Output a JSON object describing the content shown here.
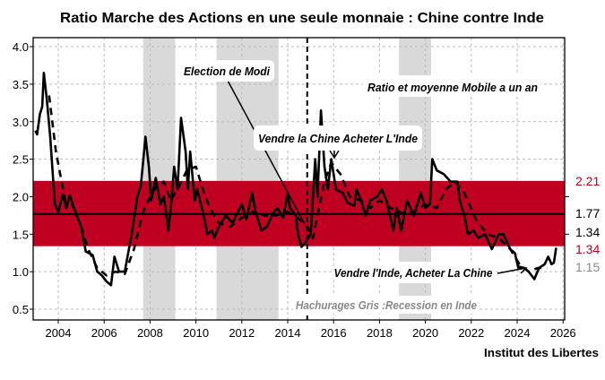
{
  "chart_data": {
    "type": "line",
    "title": "Ratio Marche des Actions en une seule monnaie : Chine contre Inde",
    "xlim": [
      2003,
      2026
    ],
    "ylim": [
      0.4,
      4.1
    ],
    "x_ticks": [
      "2004",
      "2006",
      "2008",
      "2010",
      "2012",
      "2014",
      "2016",
      "2018",
      "2020",
      "2022",
      "2024",
      "2026"
    ],
    "y_ticks": [
      "0.5",
      "1.0",
      "1.5",
      "2.0",
      "2.5",
      "3.0",
      "3.5",
      "4.0"
    ],
    "grid": true,
    "band": {
      "low": 1.34,
      "high": 2.21,
      "mean": 1.77,
      "color": "#c00020"
    },
    "recessions": [
      [
        2007.7,
        2009.1
      ],
      [
        2010.9,
        2013.6
      ],
      [
        2018.85,
        2020.25
      ]
    ],
    "event_line_x": 2014.85,
    "series": [
      {
        "style": "solid",
        "points": [
          [
            2003.0,
            2.88
          ],
          [
            2003.08,
            2.83
          ],
          [
            2003.2,
            3.1
          ],
          [
            2003.3,
            3.2
          ],
          [
            2003.37,
            3.65
          ],
          [
            2003.5,
            3.3
          ],
          [
            2003.65,
            2.8
          ],
          [
            2003.85,
            1.9
          ],
          [
            2004.0,
            1.8
          ],
          [
            2004.2,
            2.03
          ],
          [
            2004.35,
            1.85
          ],
          [
            2004.5,
            2.02
          ],
          [
            2004.8,
            1.75
          ],
          [
            2005.0,
            1.6
          ],
          [
            2005.2,
            1.27
          ],
          [
            2005.5,
            1.22
          ],
          [
            2005.7,
            1.0
          ],
          [
            2005.9,
            0.95
          ],
          [
            2006.1,
            0.87
          ],
          [
            2006.3,
            0.82
          ],
          [
            2006.45,
            1.2
          ],
          [
            2006.65,
            1.0
          ],
          [
            2006.9,
            1.0
          ],
          [
            2007.2,
            1.5
          ],
          [
            2007.45,
            2.0
          ],
          [
            2007.6,
            2.15
          ],
          [
            2007.8,
            2.8
          ],
          [
            2007.95,
            2.4
          ],
          [
            2008.05,
            1.95
          ],
          [
            2008.25,
            2.25
          ],
          [
            2008.45,
            1.9
          ],
          [
            2008.6,
            2.0
          ],
          [
            2008.8,
            1.55
          ],
          [
            2008.95,
            2.0
          ],
          [
            2009.05,
            2.4
          ],
          [
            2009.2,
            2.1
          ],
          [
            2009.35,
            3.05
          ],
          [
            2009.55,
            2.6
          ],
          [
            2009.65,
            2.1
          ],
          [
            2009.75,
            2.6
          ],
          [
            2009.95,
            1.95
          ],
          [
            2010.05,
            2.1
          ],
          [
            2010.3,
            1.8
          ],
          [
            2010.5,
            1.5
          ],
          [
            2010.7,
            1.55
          ],
          [
            2010.8,
            1.45
          ],
          [
            2011.0,
            1.6
          ],
          [
            2011.3,
            1.75
          ],
          [
            2011.6,
            1.65
          ],
          [
            2011.8,
            1.78
          ],
          [
            2012.0,
            1.9
          ],
          [
            2012.2,
            1.7
          ],
          [
            2012.45,
            2.05
          ],
          [
            2012.6,
            1.8
          ],
          [
            2012.85,
            1.55
          ],
          [
            2013.1,
            1.6
          ],
          [
            2013.35,
            1.78
          ],
          [
            2013.55,
            1.85
          ],
          [
            2013.8,
            1.72
          ],
          [
            2014.0,
            2.05
          ],
          [
            2014.1,
            1.85
          ],
          [
            2014.35,
            1.75
          ],
          [
            2014.45,
            1.5
          ],
          [
            2014.6,
            1.33
          ],
          [
            2014.8,
            1.4
          ],
          [
            2015.0,
            1.5
          ],
          [
            2015.2,
            2.5
          ],
          [
            2015.3,
            2.0
          ],
          [
            2015.45,
            3.15
          ],
          [
            2015.6,
            2.4
          ],
          [
            2015.75,
            2.1
          ],
          [
            2015.9,
            2.5
          ],
          [
            2016.1,
            2.1
          ],
          [
            2016.4,
            2.05
          ],
          [
            2016.6,
            1.92
          ],
          [
            2016.9,
            1.88
          ],
          [
            2017.0,
            2.1
          ],
          [
            2017.2,
            1.95
          ],
          [
            2017.4,
            1.75
          ],
          [
            2017.6,
            1.95
          ],
          [
            2017.9,
            2.0
          ],
          [
            2018.1,
            2.1
          ],
          [
            2018.3,
            1.95
          ],
          [
            2018.6,
            1.55
          ],
          [
            2018.75,
            1.85
          ],
          [
            2018.95,
            1.55
          ],
          [
            2019.2,
            1.95
          ],
          [
            2019.5,
            1.75
          ],
          [
            2019.8,
            2.05
          ],
          [
            2020.0,
            1.85
          ],
          [
            2020.2,
            1.9
          ],
          [
            2020.3,
            2.5
          ],
          [
            2020.5,
            2.35
          ],
          [
            2020.8,
            2.3
          ],
          [
            2021.1,
            2.2
          ],
          [
            2021.4,
            2.2
          ],
          [
            2021.5,
            1.95
          ],
          [
            2021.7,
            1.75
          ],
          [
            2021.85,
            1.5
          ],
          [
            2022.1,
            1.55
          ],
          [
            2022.3,
            1.45
          ],
          [
            2022.6,
            1.5
          ],
          [
            2022.9,
            1.3
          ],
          [
            2023.2,
            1.5
          ],
          [
            2023.4,
            1.5
          ],
          [
            2023.7,
            1.3
          ],
          [
            2023.9,
            1.25
          ],
          [
            2024.05,
            1.05
          ],
          [
            2024.3,
            1.05
          ],
          [
            2024.5,
            1.0
          ],
          [
            2024.75,
            0.9
          ],
          [
            2024.95,
            1.05
          ],
          [
            2025.2,
            1.1
          ],
          [
            2025.35,
            1.2
          ],
          [
            2025.5,
            1.1
          ],
          [
            2025.6,
            1.12
          ],
          [
            2025.7,
            1.32
          ]
        ]
      },
      {
        "style": "dashed",
        "points": [
          [
            2003.6,
            3.35
          ],
          [
            2003.9,
            2.6
          ],
          [
            2004.3,
            1.95
          ],
          [
            2004.6,
            1.9
          ],
          [
            2005.0,
            1.6
          ],
          [
            2005.3,
            1.3
          ],
          [
            2005.7,
            1.05
          ],
          [
            2006.1,
            0.95
          ],
          [
            2006.5,
            1.0
          ],
          [
            2006.9,
            0.97
          ],
          [
            2007.3,
            1.3
          ],
          [
            2007.7,
            1.8
          ],
          [
            2008.0,
            2.0
          ],
          [
            2008.3,
            2.15
          ],
          [
            2008.6,
            2.2
          ],
          [
            2008.9,
            1.95
          ],
          [
            2009.2,
            2.1
          ],
          [
            2009.6,
            2.35
          ],
          [
            2010.0,
            2.4
          ],
          [
            2010.3,
            2.1
          ],
          [
            2010.6,
            1.85
          ],
          [
            2011.0,
            1.65
          ],
          [
            2011.5,
            1.6
          ],
          [
            2012.0,
            1.72
          ],
          [
            2012.5,
            1.8
          ],
          [
            2013.0,
            1.75
          ],
          [
            2013.5,
            1.75
          ],
          [
            2014.0,
            1.8
          ],
          [
            2014.5,
            1.7
          ],
          [
            2014.85,
            1.6
          ],
          [
            2015.1,
            1.45
          ],
          [
            2015.4,
            1.9
          ],
          [
            2015.6,
            2.2
          ],
          [
            2015.9,
            2.45
          ],
          [
            2016.3,
            2.3
          ],
          [
            2016.7,
            2.0
          ],
          [
            2017.2,
            1.95
          ],
          [
            2017.6,
            1.85
          ],
          [
            2018.0,
            1.95
          ],
          [
            2018.5,
            1.85
          ],
          [
            2019.0,
            1.78
          ],
          [
            2019.5,
            1.8
          ],
          [
            2020.0,
            1.9
          ],
          [
            2020.5,
            1.85
          ],
          [
            2020.9,
            2.1
          ],
          [
            2021.3,
            2.2
          ],
          [
            2021.7,
            2.05
          ],
          [
            2022.2,
            1.7
          ],
          [
            2022.7,
            1.5
          ],
          [
            2023.2,
            1.45
          ],
          [
            2023.7,
            1.3
          ],
          [
            2024.1,
            1.1
          ],
          [
            2024.5,
            1.0
          ],
          [
            2024.9,
            1.05
          ],
          [
            2025.3,
            1.05
          ]
        ]
      }
    ],
    "right_labels": [
      {
        "text": "2.21",
        "color": "#c00020"
      },
      {
        "text": "1.77",
        "color": "#000000"
      },
      {
        "text": "1.34",
        "color": "#000000"
      },
      {
        "text": "1.34",
        "color": "#c00020"
      },
      {
        "text": "1.15",
        "color": "#888888"
      }
    ],
    "annotations": {
      "modi": "Election de Modi",
      "sell_china": "Vendre la Chine Acheter L'Inde",
      "legend": "Ratio et moyenne Mobile a un an",
      "sell_india": "Vendre l'Inde, Acheter La Chine",
      "recession_note": "Hachurages Gris :Recession en Inde"
    },
    "source": "Institut des Libertes"
  }
}
